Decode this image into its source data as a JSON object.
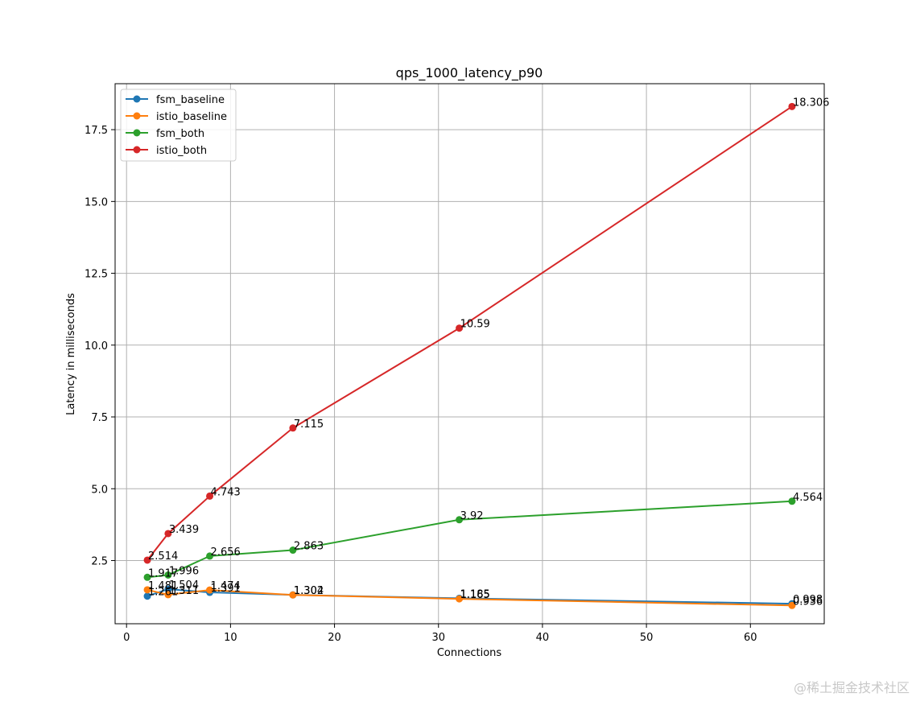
{
  "watermark": "@稀土掘金技术社区",
  "chart_data": {
    "type": "line",
    "title": "qps_1000_latency_p90",
    "xlabel": "Connections",
    "ylabel": "Latency in milliseconds",
    "xlim": [
      -1.1,
      67.1
    ],
    "ylim": [
      0.3,
      19.1
    ],
    "xticks": [
      0,
      10,
      20,
      30,
      40,
      50,
      60
    ],
    "yticks": [
      2.5,
      5.0,
      7.5,
      10.0,
      12.5,
      15.0,
      17.5
    ],
    "xtick_labels": [
      "0",
      "10",
      "20",
      "30",
      "40",
      "50",
      "60"
    ],
    "ytick_labels": [
      "2.5",
      "5.0",
      "7.5",
      "10.0",
      "12.5",
      "15.0",
      "17.5"
    ],
    "grid": true,
    "legend_position": "top-left",
    "x": [
      2,
      4,
      8,
      16,
      32,
      64
    ],
    "series": [
      {
        "name": "fsm_baseline",
        "color": "#1f77b4",
        "values": [
          1.261,
          1.504,
          1.391,
          1.304,
          1.185,
          0.998
        ],
        "labels": [
          "1.261",
          "1.504",
          "1.391",
          "1.304",
          "1.185",
          "0.998"
        ]
      },
      {
        "name": "istio_baseline",
        "color": "#ff7f0e",
        "values": [
          1.481,
          1.311,
          1.474,
          1.302,
          1.165,
          0.936
        ],
        "labels": [
          "1.481",
          "1.311",
          "1.474",
          "1.302",
          "1.165",
          "0.936"
        ]
      },
      {
        "name": "fsm_both",
        "color": "#2ca02c",
        "values": [
          1.917,
          1.996,
          2.656,
          2.863,
          3.92,
          4.564
        ],
        "labels": [
          "1.917",
          "1.996",
          "2.656",
          "2.863",
          "3.92",
          "4.564"
        ]
      },
      {
        "name": "istio_both",
        "color": "#d62728",
        "values": [
          2.514,
          3.439,
          4.743,
          7.115,
          10.59,
          18.306
        ],
        "labels": [
          "2.514",
          "3.439",
          "4.743",
          "7.115",
          "10.59",
          "18.306"
        ]
      }
    ]
  }
}
